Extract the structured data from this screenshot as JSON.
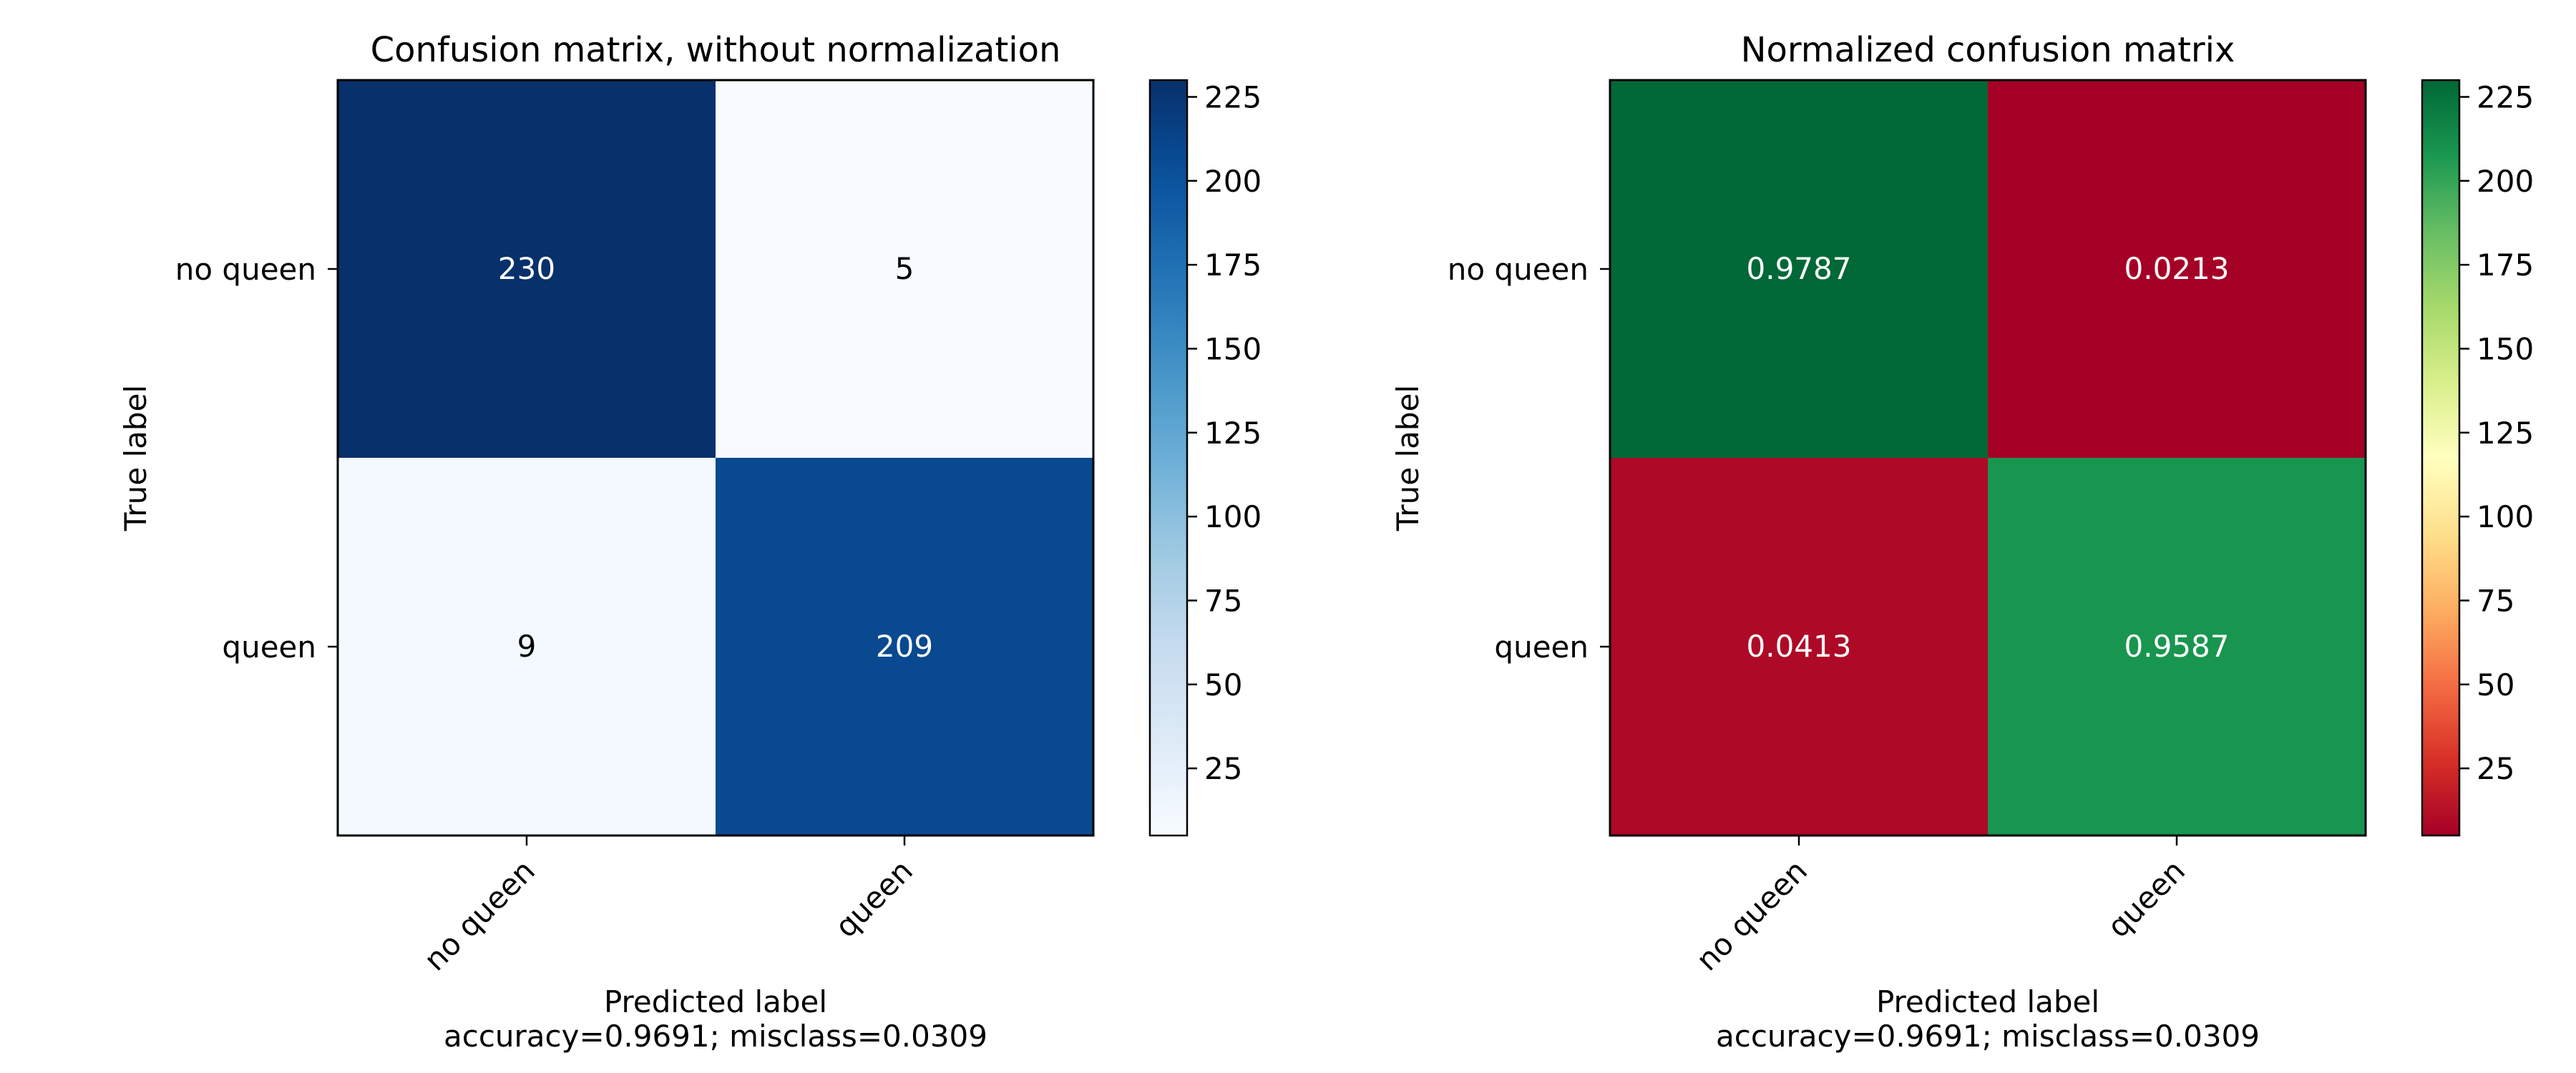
{
  "chart_data": [
    {
      "type": "heatmap",
      "title": "Confusion matrix, without normalization",
      "xlabel": "Predicted label",
      "xlabel_sub": "accuracy=0.9691; misclass=0.0309",
      "ylabel": "True label",
      "x_categories": [
        "no queen",
        "queen"
      ],
      "y_categories": [
        "no queen",
        "queen"
      ],
      "values": [
        [
          230,
          5
        ],
        [
          9,
          209
        ]
      ],
      "cell_text": [
        [
          "230",
          "5"
        ],
        [
          "9",
          "209"
        ]
      ],
      "colormap": "Blues",
      "color_range": [
        5,
        230
      ],
      "colorbar_ticks": [
        25,
        50,
        75,
        100,
        125,
        150,
        175,
        200,
        225
      ],
      "colorbar_tick_labels": [
        "25",
        "50",
        "75",
        "100",
        "125",
        "150",
        "175",
        "200",
        "225"
      ]
    },
    {
      "type": "heatmap",
      "title": "Normalized confusion matrix",
      "xlabel": "Predicted label",
      "xlabel_sub": "accuracy=0.9691; misclass=0.0309",
      "ylabel": "True label",
      "x_categories": [
        "no queen",
        "queen"
      ],
      "y_categories": [
        "no queen",
        "queen"
      ],
      "values": [
        [
          230,
          5
        ],
        [
          9,
          209
        ]
      ],
      "cell_text": [
        [
          "0.9787",
          "0.0213"
        ],
        [
          "0.0413",
          "0.9587"
        ]
      ],
      "colormap": "RdYlGn",
      "color_range": [
        5,
        230
      ],
      "colorbar_ticks": [
        25,
        50,
        75,
        100,
        125,
        150,
        175,
        200,
        225
      ],
      "colorbar_tick_labels": [
        "25",
        "50",
        "75",
        "100",
        "125",
        "150",
        "175",
        "200",
        "225"
      ]
    }
  ]
}
